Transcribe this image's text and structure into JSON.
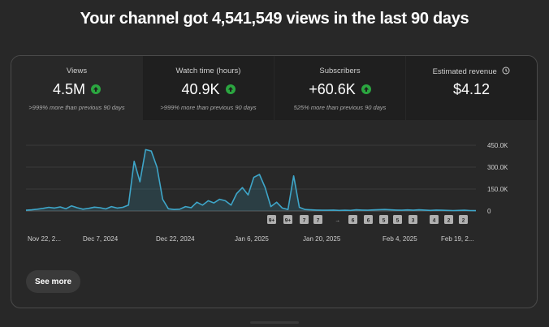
{
  "headline": "Your channel got 4,541,549 views in the last 90 days",
  "metrics": [
    {
      "label": "Views",
      "value": "4.5M",
      "trend": "up",
      "note": ">999% more than previous 90 days"
    },
    {
      "label": "Watch time (hours)",
      "value": "40.9K",
      "trend": "up",
      "note": ">999% more than previous 90 days"
    },
    {
      "label": "Subscribers",
      "value": "+60.6K",
      "trend": "up",
      "note": "525% more than previous 90 days"
    },
    {
      "label": "Estimated revenue",
      "value": "$4.12",
      "trend": "none",
      "note": ""
    }
  ],
  "chart_data": {
    "type": "area",
    "ylim": [
      0,
      450000
    ],
    "y_ticks": [
      0,
      150000,
      300000,
      450000
    ],
    "y_tick_labels": [
      "0",
      "150.0K",
      "300.0K",
      "450.0K"
    ],
    "x_tick_labels": [
      "Nov 22, 2...",
      "Dec 7, 2024",
      "Dec 22, 2024",
      "Jan 6, 2025",
      "Jan 20, 2025",
      "Feb 4, 2025",
      "Feb 19, 2..."
    ],
    "series": [
      {
        "color": "#3ea6c9",
        "values": [
          5000,
          8000,
          12000,
          18000,
          25000,
          20000,
          28000,
          15000,
          35000,
          22000,
          12000,
          18000,
          26000,
          22000,
          14000,
          30000,
          20000,
          25000,
          40000,
          340000,
          200000,
          420000,
          410000,
          300000,
          80000,
          15000,
          10000,
          12000,
          30000,
          22000,
          60000,
          40000,
          70000,
          55000,
          80000,
          70000,
          40000,
          120000,
          160000,
          110000,
          230000,
          250000,
          160000,
          30000,
          60000,
          20000,
          10000,
          240000,
          25000,
          10000,
          8000,
          6000,
          5000,
          5000,
          6000,
          4000,
          5000,
          4000,
          8000,
          6000,
          5000,
          7000,
          9000,
          10000,
          8000,
          6000,
          5000,
          7000,
          5000,
          8000,
          6000,
          4000,
          6000,
          5000,
          4000,
          3000,
          4000,
          5000,
          3000,
          2000
        ]
      }
    ],
    "video_markers": [
      "9+",
      "9+",
      "7",
      "7",
      "",
      "6",
      "6",
      "5",
      "5",
      "3",
      "4",
      "2",
      "2"
    ]
  },
  "see_more_label": "See more"
}
